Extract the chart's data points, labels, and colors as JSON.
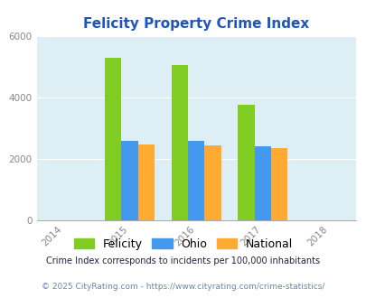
{
  "title": "Felicity Property Crime Index",
  "years": [
    2014,
    2015,
    2016,
    2017,
    2018
  ],
  "bar_years": [
    2015,
    2016,
    2017
  ],
  "felicity": [
    5280,
    5060,
    3750
  ],
  "ohio": [
    2580,
    2580,
    2420
  ],
  "national": [
    2460,
    2430,
    2360
  ],
  "felicity_color": "#80cc22",
  "ohio_color": "#4499ee",
  "national_color": "#ffaa33",
  "bg_color": "#ddeef5",
  "ylim": [
    0,
    6000
  ],
  "yticks": [
    0,
    2000,
    4000,
    6000
  ],
  "legend_labels": [
    "Felicity",
    "Ohio",
    "National"
  ],
  "footnote1": "Crime Index corresponds to incidents per 100,000 inhabitants",
  "footnote2": "© 2025 CityRating.com - https://www.cityrating.com/crime-statistics/",
  "title_color": "#2255bb",
  "footnote1_color": "#222244",
  "footnote2_color": "#6688aa",
  "bar_width": 0.25,
  "tick_label_color": "#888888",
  "grid_color": "#ffffff"
}
